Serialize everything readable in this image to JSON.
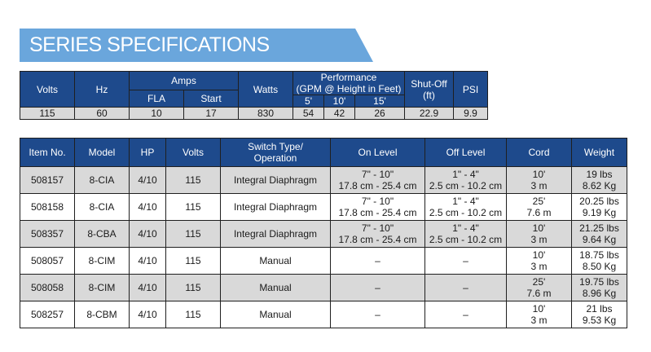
{
  "banner": {
    "title": "SERIES SPECIFICATIONS"
  },
  "spec": {
    "headers": {
      "volts": "Volts",
      "hz": "Hz",
      "amps": "Amps",
      "fla": "FLA",
      "start": "Start",
      "watts": "Watts",
      "performance_line1": "Performance",
      "performance_line2": "(GPM @ Height in Feet)",
      "h5": "5'",
      "h10": "10'",
      "h15": "15'",
      "shutoff_line1": "Shut-Off",
      "shutoff_line2": "(ft)",
      "psi": "PSI"
    },
    "values": [
      "115",
      "60",
      "10",
      "17",
      "830",
      "54",
      "42",
      "26",
      "22.9",
      "9.9"
    ]
  },
  "products": {
    "headers": {
      "item": "Item No.",
      "model": "Model",
      "hp": "HP",
      "volts": "Volts",
      "switch_line1": "Switch Type/",
      "switch_line2": "Operation",
      "on_level": "On Level",
      "off_level": "Off Level",
      "cord": "Cord",
      "weight": "Weight"
    },
    "rows": [
      {
        "item": "508157",
        "model": "8-CIA",
        "hp": "4/10",
        "volts": "115",
        "switch": "Integral Diaphragm",
        "on1": "7\" - 10\"",
        "on2": "17.8 cm - 25.4 cm",
        "off1": "1\" - 4\"",
        "off2": "2.5 cm - 10.2 cm",
        "cord1": "10'",
        "cord2": "3 m",
        "w1": "19 lbs",
        "w2": "8.62 Kg"
      },
      {
        "item": "508158",
        "model": "8-CIA",
        "hp": "4/10",
        "volts": "115",
        "switch": "Integral Diaphragm",
        "on1": "7\" - 10\"",
        "on2": "17.8 cm - 25.4 cm",
        "off1": "1\" - 4\"",
        "off2": "2.5 cm - 10.2 cm",
        "cord1": "25'",
        "cord2": "7.6 m",
        "w1": "20.25 lbs",
        "w2": "9.19 Kg"
      },
      {
        "item": "508357",
        "model": "8-CBA",
        "hp": "4/10",
        "volts": "115",
        "switch": "Integral Diaphragm",
        "on1": "7\" - 10\"",
        "on2": "17.8 cm - 25.4 cm",
        "off1": "1\" - 4\"",
        "off2": "2.5 cm - 10.2 cm",
        "cord1": "10'",
        "cord2": "3 m",
        "w1": "21.25 lbs",
        "w2": "9.64 Kg"
      },
      {
        "item": "508057",
        "model": "8-CIM",
        "hp": "4/10",
        "volts": "115",
        "switch": "Manual",
        "on1": "–",
        "on2": "",
        "off1": "–",
        "off2": "",
        "cord1": "10'",
        "cord2": "3 m",
        "w1": "18.75 lbs",
        "w2": "8.50 Kg"
      },
      {
        "item": "508058",
        "model": "8-CIM",
        "hp": "4/10",
        "volts": "115",
        "switch": "Manual",
        "on1": "–",
        "on2": "",
        "off1": "–",
        "off2": "",
        "cord1": "25'",
        "cord2": "7.6 m",
        "w1": "19.75 lbs",
        "w2": "8.96 Kg"
      },
      {
        "item": "508257",
        "model": "8-CBM",
        "hp": "4/10",
        "volts": "115",
        "switch": "Manual",
        "on1": "–",
        "on2": "",
        "off1": "–",
        "off2": "",
        "cord1": "10'",
        "cord2": "3 m",
        "w1": "21 lbs",
        "w2": "9.53 Kg"
      }
    ]
  },
  "colors": {
    "header_bg": "#1e4a8c",
    "banner_bg": "#6aa6dc",
    "shade": "#d9d9d9"
  }
}
